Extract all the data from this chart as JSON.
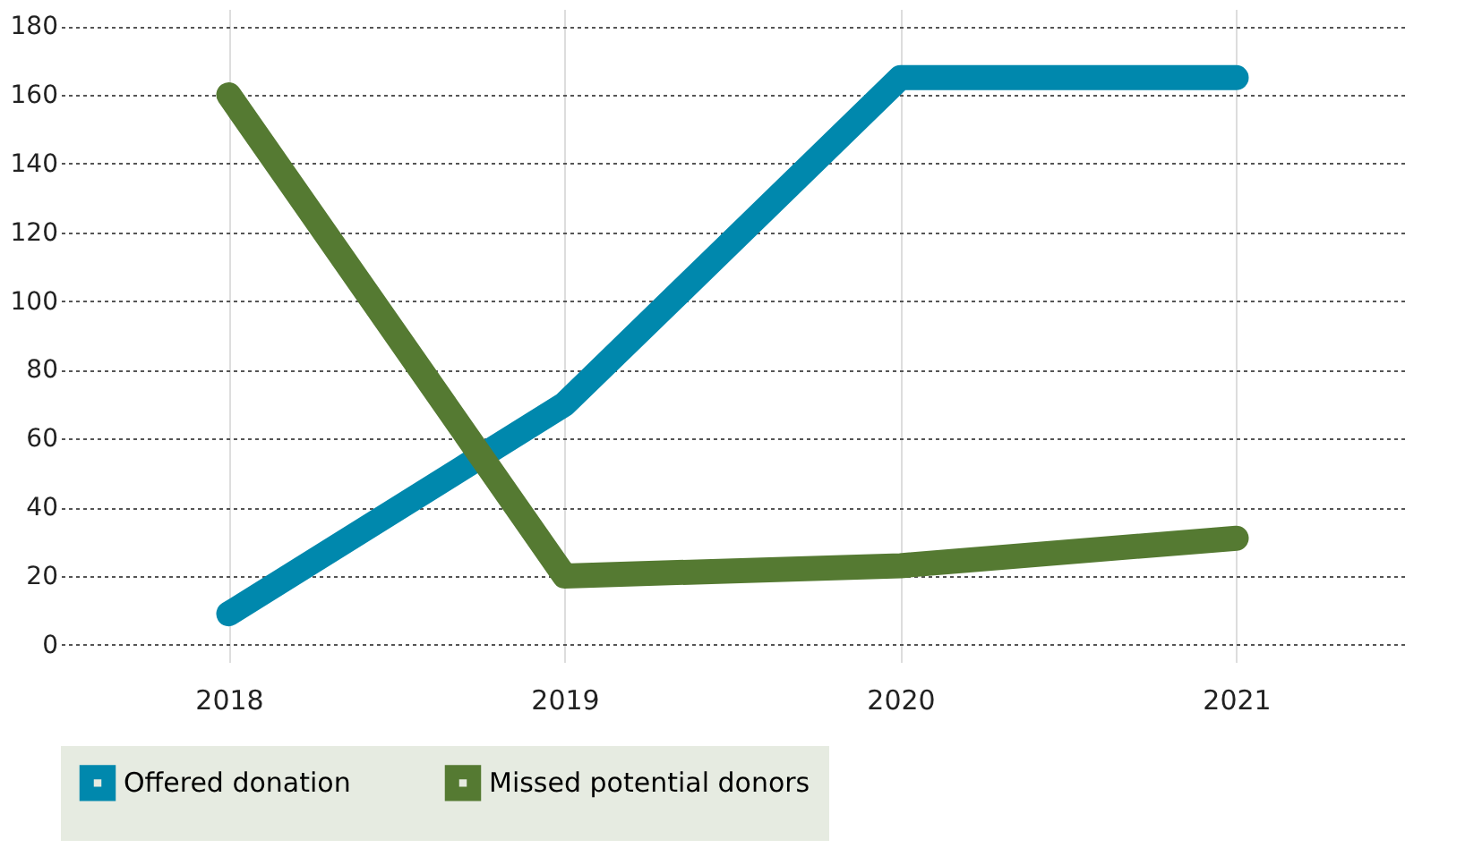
{
  "chart_data": {
    "type": "line",
    "categories": [
      "2018",
      "2019",
      "2020",
      "2021"
    ],
    "series": [
      {
        "name": "Offered donation",
        "color": "#0088ad",
        "values": [
          9,
          70,
          165,
          165
        ]
      },
      {
        "name": "Missed potential donors",
        "color": "#557a32",
        "values": [
          160,
          20,
          23,
          31
        ]
      }
    ],
    "ylim": [
      -5,
      185
    ],
    "yticks": [
      0,
      20,
      40,
      60,
      80,
      100,
      120,
      140,
      160,
      180
    ],
    "grid": true,
    "legend": "bottom",
    "marker": "none",
    "line_style": "solid"
  }
}
